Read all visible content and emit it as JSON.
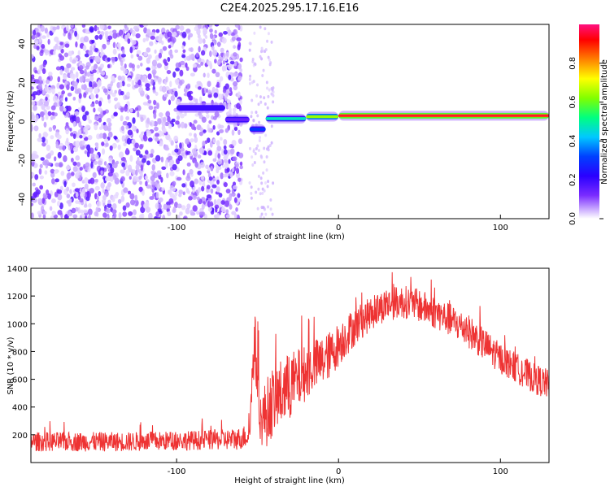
{
  "title": "C2E4.2025.295.17.16.E16",
  "chart_data": [
    {
      "type": "heatmap",
      "xlabel": "Height of straight line (km)",
      "ylabel": "Frequency (Hz)",
      "xlim": [
        -190,
        130
      ],
      "ylim": [
        -50,
        50
      ],
      "x_ticks": [
        -100,
        0,
        100
      ],
      "y_ticks": [
        -40,
        -20,
        0,
        20,
        40
      ],
      "colorbar": {
        "label": "Normalized spectral amplitude",
        "range": [
          0,
          1
        ],
        "ticks": [
          "0.0",
          "0.2",
          "0.4",
          "0.6",
          "0.8"
        ],
        "colors": [
          "#ffffff",
          "#c8a8ff",
          "#7a2cff",
          "#2a00ff",
          "#0040ff",
          "#00c8ff",
          "#00ff80",
          "#80ff00",
          "#ffff00",
          "#ff8000",
          "#ff0000",
          "#ff1080"
        ]
      },
      "noise_region_km": [
        -190,
        -60
      ],
      "line_segments": [
        {
          "x_start": -100,
          "x_end": -70,
          "freq_hz": 7,
          "amplitude": 0.35
        },
        {
          "x_start": -70,
          "x_end": -55,
          "freq_hz": 1,
          "amplitude": 0.3
        },
        {
          "x_start": -55,
          "x_end": -45,
          "freq_hz": -4,
          "amplitude": 0.45
        },
        {
          "x_start": -45,
          "x_end": -20,
          "freq_hz": 1.5,
          "amplitude": 0.6
        },
        {
          "x_start": -20,
          "x_end": 0,
          "freq_hz": 2.5,
          "amplitude": 0.75
        },
        {
          "x_start": 0,
          "x_end": 130,
          "freq_hz": 3,
          "amplitude": 0.95
        }
      ]
    },
    {
      "type": "line",
      "xlabel": "Height of straight line (km)",
      "ylabel": "SNR (10 * v/v)",
      "xlim": [
        -190,
        130
      ],
      "ylim": [
        0,
        1400
      ],
      "x_ticks": [
        -100,
        0,
        100
      ],
      "y_ticks": [
        200,
        400,
        600,
        800,
        1000,
        1200,
        1400
      ],
      "color": "#ee3333",
      "series": [
        {
          "x": [
            -190,
            -170,
            -150,
            -130,
            -110,
            -90,
            -70,
            -62,
            -55,
            -52,
            -48,
            -45,
            -40,
            -35,
            -30,
            -25,
            -20,
            -15,
            -10,
            -5,
            0,
            5,
            10,
            15,
            20,
            25,
            30,
            35,
            40,
            50,
            60,
            70,
            80,
            90,
            100,
            110,
            120,
            130
          ],
          "values": [
            150,
            150,
            150,
            150,
            155,
            160,
            165,
            170,
            200,
            900,
            300,
            350,
            450,
            500,
            550,
            600,
            650,
            700,
            730,
            780,
            850,
            920,
            980,
            1030,
            1070,
            1110,
            1140,
            1150,
            1160,
            1130,
            1080,
            1020,
            950,
            850,
            750,
            680,
            610,
            560
          ],
          "spread": [
            70,
            70,
            70,
            70,
            70,
            70,
            75,
            80,
            90,
            250,
            180,
            250,
            250,
            250,
            250,
            220,
            200,
            190,
            180,
            170,
            160,
            150,
            140,
            130,
            120,
            120,
            120,
            120,
            120,
            120,
            120,
            120,
            120,
            120,
            110,
            110,
            110,
            110
          ]
        }
      ]
    }
  ]
}
